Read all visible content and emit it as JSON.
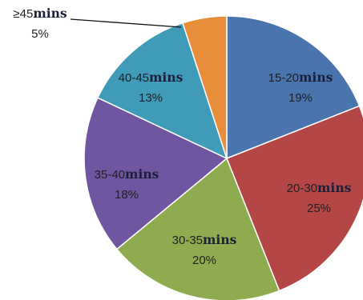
{
  "chart_data": {
    "type": "pie",
    "unit_label": "mins",
    "slices": [
      {
        "category": "15-20",
        "value": 19,
        "percent_label": "19%",
        "color": "#4a74ad"
      },
      {
        "category": "20-30",
        "value": 25,
        "percent_label": "25%",
        "color": "#b44746"
      },
      {
        "category": "30-35",
        "value": 20,
        "percent_label": "20%",
        "color": "#8fab4f"
      },
      {
        "category": "35-40",
        "value": 18,
        "percent_label": "18%",
        "color": "#7056a0"
      },
      {
        "category": "40-45",
        "value": 13,
        "percent_label": "13%",
        "color": "#3f9bb8"
      },
      {
        "category": "≥45",
        "value": 5,
        "percent_label": "5%",
        "color": "#e88d39"
      }
    ],
    "start": "12 o'clock",
    "direction": "clockwise",
    "legend": "none"
  }
}
